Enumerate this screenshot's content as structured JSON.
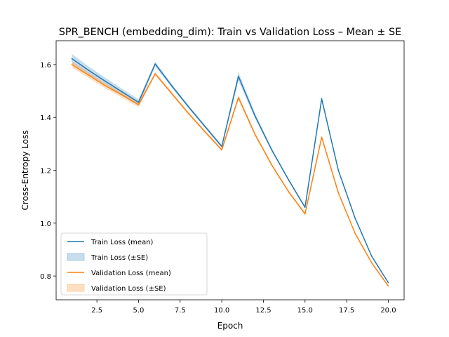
{
  "chart_data": {
    "type": "line",
    "title": "SPR_BENCH (embedding_dim): Train vs Validation Loss – Mean ± SE",
    "xlabel": "Epoch",
    "ylabel": "Cross-Entropy Loss",
    "xlim": [
      0.05,
      20.95
    ],
    "ylim": [
      0.71,
      1.69
    ],
    "xticks": [
      2.5,
      5.0,
      7.5,
      10.0,
      12.5,
      15.0,
      17.5,
      20.0
    ],
    "xtick_labels": [
      "2.5",
      "5.0",
      "7.5",
      "10.0",
      "12.5",
      "15.0",
      "17.5",
      "20.0"
    ],
    "yticks": [
      0.8,
      1.0,
      1.2,
      1.4,
      1.6
    ],
    "ytick_labels": [
      "0.8",
      "1.0",
      "1.2",
      "1.4",
      "1.6"
    ],
    "grid": false,
    "legend_position": "lower-left",
    "x": [
      1,
      2,
      3,
      4,
      5,
      6,
      7,
      8,
      9,
      10,
      11,
      12,
      13,
      14,
      15,
      16,
      17,
      18,
      19,
      20
    ],
    "series": [
      {
        "name": "Train Loss (mean)",
        "band_name": "Train Loss (±SE)",
        "color": "#1f77b4",
        "values": [
          1.622,
          1.578,
          1.537,
          1.497,
          1.457,
          1.602,
          1.519,
          1.44,
          1.365,
          1.29,
          1.555,
          1.405,
          1.277,
          1.165,
          1.06,
          1.47,
          1.2,
          1.02,
          0.875,
          0.775
        ],
        "se": [
          0.018,
          0.015,
          0.013,
          0.012,
          0.012,
          0.009,
          0.007,
          0.006,
          0.006,
          0.006,
          0.017,
          0.01,
          0.006,
          0.004,
          0.004,
          0.008,
          0.004,
          0.003,
          0.003,
          0.003
        ]
      },
      {
        "name": "Validation Loss (mean)",
        "band_name": "Validation Loss (±SE)",
        "color": "#ff7f0e",
        "values": [
          1.6,
          1.56,
          1.52,
          1.485,
          1.448,
          1.565,
          1.49,
          1.415,
          1.345,
          1.277,
          1.475,
          1.335,
          1.22,
          1.12,
          1.035,
          1.325,
          1.115,
          0.962,
          0.85,
          0.762
        ],
        "se": [
          0.012,
          0.011,
          0.01,
          0.01,
          0.01,
          0.006,
          0.006,
          0.005,
          0.005,
          0.005,
          0.01,
          0.006,
          0.005,
          0.004,
          0.004,
          0.006,
          0.004,
          0.003,
          0.003,
          0.003
        ]
      }
    ]
  }
}
